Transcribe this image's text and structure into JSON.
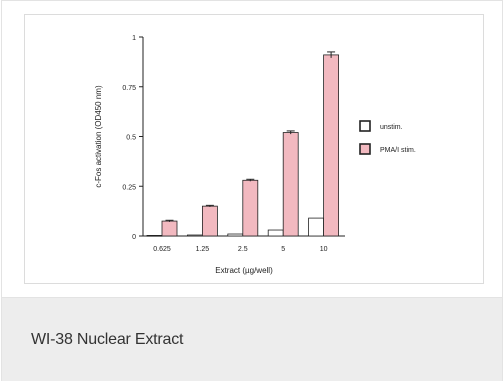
{
  "caption": "WI-38 Nuclear Extract",
  "colors": {
    "unstim_fill": "#ffffff",
    "pma_fill": "#f2b9c0",
    "stroke": "#222222"
  },
  "chart_data": {
    "type": "bar",
    "categories": [
      "0.625",
      "1.25",
      "2.5",
      "5",
      "10"
    ],
    "series": [
      {
        "name": "unstim.",
        "values": [
          0.003,
          0.005,
          0.01,
          0.03,
          0.09
        ]
      },
      {
        "name": "PMA/I stim.",
        "values": [
          0.075,
          0.15,
          0.28,
          0.52,
          0.91
        ]
      }
    ],
    "errors": [
      [
        0,
        0,
        0,
        0,
        0
      ],
      [
        0.004,
        0.004,
        0.005,
        0.008,
        0.015
      ]
    ],
    "xlabel": "Extract (µg/well)",
    "ylabel": "c-Fos activation (OD450 nm)",
    "ylim": [
      0,
      1
    ],
    "yticks": [
      "0",
      "0.25",
      "0.5",
      "0.75",
      "1"
    ],
    "ytick_values": [
      0,
      0.25,
      0.5,
      0.75,
      1
    ],
    "legend": [
      "unstim.",
      "PMA/I stim."
    ],
    "legend_position": "right",
    "grid": false
  }
}
